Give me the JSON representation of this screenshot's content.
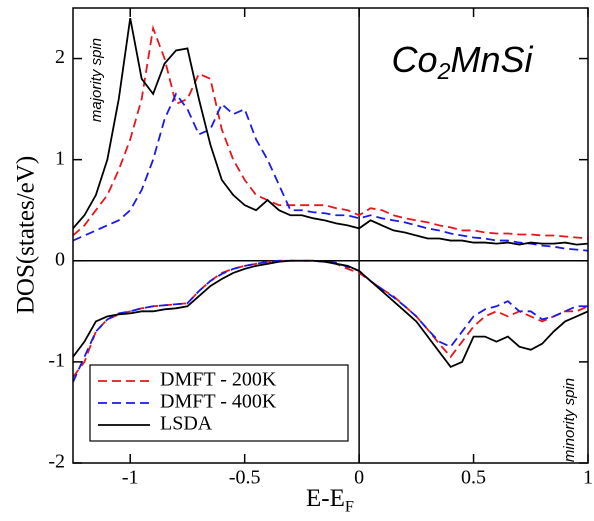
{
  "chart_data": {
    "type": "line",
    "title": [
      "Co",
      "2",
      "MnSi"
    ],
    "x_label": [
      "E-E",
      "F"
    ],
    "y_label": "DOS(states/eV)",
    "annotations": [
      "majority spin",
      "minority spin"
    ],
    "xlim": [
      -1.25,
      1
    ],
    "ylim": [
      -2,
      2.5
    ],
    "xticks": [
      -1,
      -0.5,
      0,
      0.5,
      1
    ],
    "yticks": [
      -2,
      -1,
      0,
      1,
      2
    ],
    "legend": "lower left",
    "x": [
      -1.25,
      -1.2,
      -1.15,
      -1.1,
      -1.05,
      -1.0,
      -0.95,
      -0.9,
      -0.85,
      -0.8,
      -0.75,
      -0.7,
      -0.65,
      -0.6,
      -0.55,
      -0.5,
      -0.45,
      -0.4,
      -0.35,
      -0.3,
      -0.25,
      -0.2,
      -0.15,
      -0.1,
      -0.05,
      0,
      0.05,
      0.1,
      0.15,
      0.2,
      0.25,
      0.3,
      0.35,
      0.4,
      0.45,
      0.5,
      0.55,
      0.6,
      0.65,
      0.7,
      0.75,
      0.8,
      0.85,
      0.9,
      0.95,
      1.0
    ],
    "series": [
      {
        "name": "DMFT - 200K",
        "color": "#e8161b",
        "linestyle": "dashed",
        "values": [
          0.25,
          0.35,
          0.5,
          0.65,
          0.9,
          1.2,
          1.6,
          2.3,
          2.0,
          1.55,
          1.6,
          1.85,
          1.8,
          1.3,
          1.0,
          0.8,
          0.65,
          0.6,
          0.55,
          0.55,
          0.55,
          0.55,
          0.55,
          0.52,
          0.5,
          0.45,
          0.52,
          0.5,
          0.45,
          0.42,
          0.4,
          0.38,
          0.35,
          0.33,
          0.3,
          0.3,
          0.28,
          0.27,
          0.27,
          0.26,
          0.26,
          0.25,
          0.25,
          0.24,
          0.23,
          0.22
        ],
        "minority_values": [
          -1.15,
          -1.0,
          -0.7,
          -0.58,
          -0.53,
          -0.5,
          -0.47,
          -0.45,
          -0.44,
          -0.43,
          -0.42,
          -0.3,
          -0.2,
          -0.12,
          -0.08,
          -0.05,
          -0.03,
          -0.01,
          0,
          0,
          0,
          0,
          -0.01,
          -0.03,
          -0.08,
          -0.12,
          -0.2,
          -0.28,
          -0.35,
          -0.45,
          -0.55,
          -0.68,
          -0.82,
          -0.95,
          -0.8,
          -0.65,
          -0.55,
          -0.5,
          -0.55,
          -0.5,
          -0.55,
          -0.6,
          -0.55,
          -0.5,
          -0.5,
          -0.45
        ]
      },
      {
        "name": "DMFT - 400K",
        "color": "#1a1aeb",
        "linestyle": "dashed",
        "values": [
          0.2,
          0.25,
          0.3,
          0.35,
          0.4,
          0.5,
          0.7,
          1.0,
          1.4,
          1.65,
          1.5,
          1.25,
          1.3,
          1.55,
          1.45,
          1.5,
          1.2,
          1.0,
          0.75,
          0.5,
          0.5,
          0.48,
          0.47,
          0.45,
          0.45,
          0.42,
          0.45,
          0.42,
          0.4,
          0.38,
          0.35,
          0.32,
          0.3,
          0.27,
          0.25,
          0.23,
          0.22,
          0.2,
          0.2,
          0.18,
          0.17,
          0.15,
          0.14,
          0.12,
          0.11,
          0.1
        ],
        "minority_values": [
          -1.2,
          -0.95,
          -0.7,
          -0.58,
          -0.52,
          -0.5,
          -0.47,
          -0.45,
          -0.44,
          -0.43,
          -0.42,
          -0.3,
          -0.2,
          -0.13,
          -0.08,
          -0.05,
          -0.03,
          -0.01,
          0,
          0,
          0,
          0,
          -0.01,
          -0.02,
          -0.06,
          -0.1,
          -0.2,
          -0.28,
          -0.36,
          -0.45,
          -0.55,
          -0.68,
          -0.8,
          -0.85,
          -0.7,
          -0.55,
          -0.48,
          -0.45,
          -0.4,
          -0.5,
          -0.5,
          -0.58,
          -0.55,
          -0.5,
          -0.45,
          -0.45
        ]
      },
      {
        "name": "LSDA",
        "color": "#000000",
        "linestyle": "solid",
        "values": [
          0.32,
          0.45,
          0.65,
          1.0,
          1.6,
          2.4,
          1.8,
          1.65,
          1.95,
          2.08,
          2.1,
          1.6,
          1.15,
          0.8,
          0.65,
          0.55,
          0.5,
          0.6,
          0.5,
          0.45,
          0.45,
          0.42,
          0.4,
          0.37,
          0.35,
          0.32,
          0.4,
          0.35,
          0.3,
          0.28,
          0.25,
          0.22,
          0.22,
          0.2,
          0.2,
          0.18,
          0.18,
          0.17,
          0.18,
          0.16,
          0.18,
          0.17,
          0.17,
          0.18,
          0.16,
          0.17
        ],
        "minority_values": [
          -0.95,
          -0.8,
          -0.6,
          -0.55,
          -0.53,
          -0.52,
          -0.5,
          -0.5,
          -0.48,
          -0.47,
          -0.45,
          -0.35,
          -0.25,
          -0.18,
          -0.12,
          -0.08,
          -0.05,
          -0.03,
          -0.01,
          0,
          0,
          0,
          -0.01,
          -0.03,
          -0.05,
          -0.1,
          -0.2,
          -0.3,
          -0.4,
          -0.5,
          -0.6,
          -0.75,
          -0.9,
          -1.05,
          -1.0,
          -0.75,
          -0.75,
          -0.8,
          -0.75,
          -0.85,
          -0.88,
          -0.82,
          -0.7,
          -0.6,
          -0.55,
          -0.5
        ]
      }
    ]
  }
}
